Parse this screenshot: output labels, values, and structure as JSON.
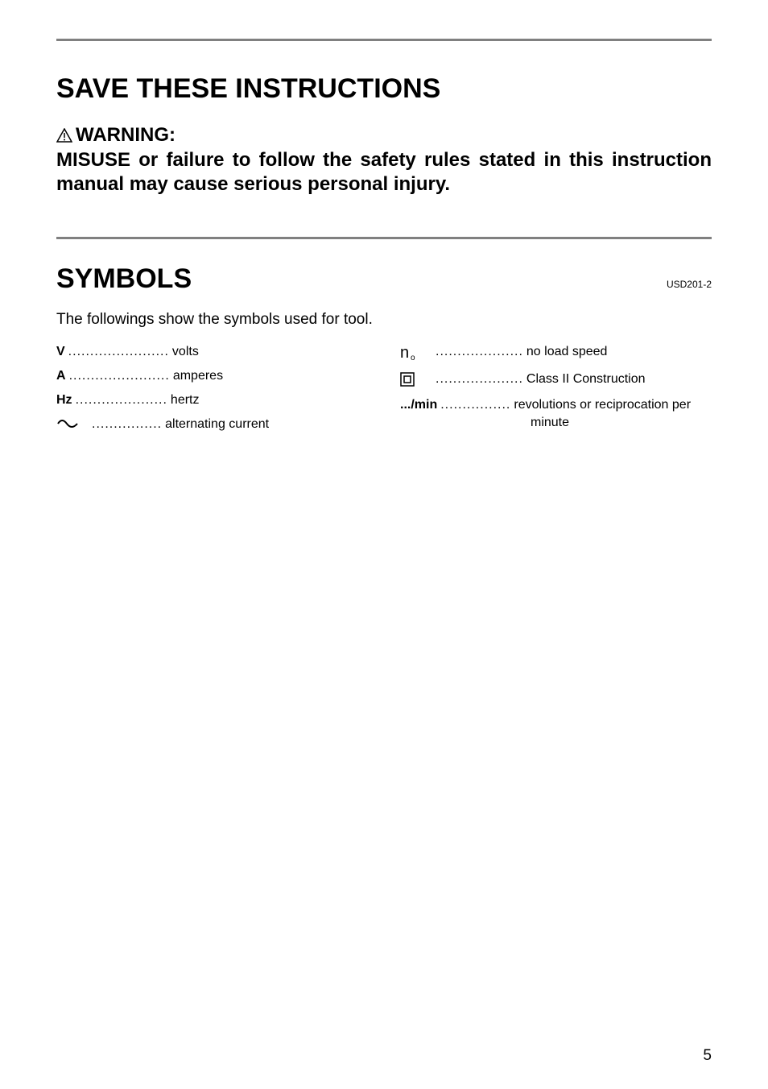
{
  "hr_color": "#808080",
  "save_heading": "SAVE THESE INSTRUCTIONS",
  "warning_label": "WARNING:",
  "warning_text": "MISUSE or failure to follow the safety rules stated in this instruction manual may cause serious personal injury.",
  "symbols_heading": "SYMBOLS",
  "doc_code": "USD201-2",
  "intro": "The followings show the symbols used for tool.",
  "left_symbols": [
    {
      "key": "V",
      "dots": ".......................",
      "desc": "volts",
      "bold": true,
      "icon": null
    },
    {
      "key": "A",
      "dots": ".......................",
      "desc": "amperes",
      "bold": true,
      "icon": null
    },
    {
      "key": "Hz",
      "dots": ".....................",
      "desc": "hertz",
      "bold": true,
      "icon": null
    },
    {
      "key": "",
      "dots": "................",
      "desc": "alternating current",
      "bold": false,
      "icon": "ac"
    }
  ],
  "right_symbols": [
    {
      "key": "",
      "dots": "....................",
      "desc": "no load speed",
      "bold": false,
      "icon": "noload"
    },
    {
      "key": "",
      "dots": "....................",
      "desc": "Class II Construction",
      "bold": false,
      "icon": "class2"
    },
    {
      "key": ".../min",
      "dots": "................",
      "desc": "revolutions or reciprocation per",
      "bold": true,
      "icon": null
    }
  ],
  "right_extra": "minute",
  "page_number": "5"
}
